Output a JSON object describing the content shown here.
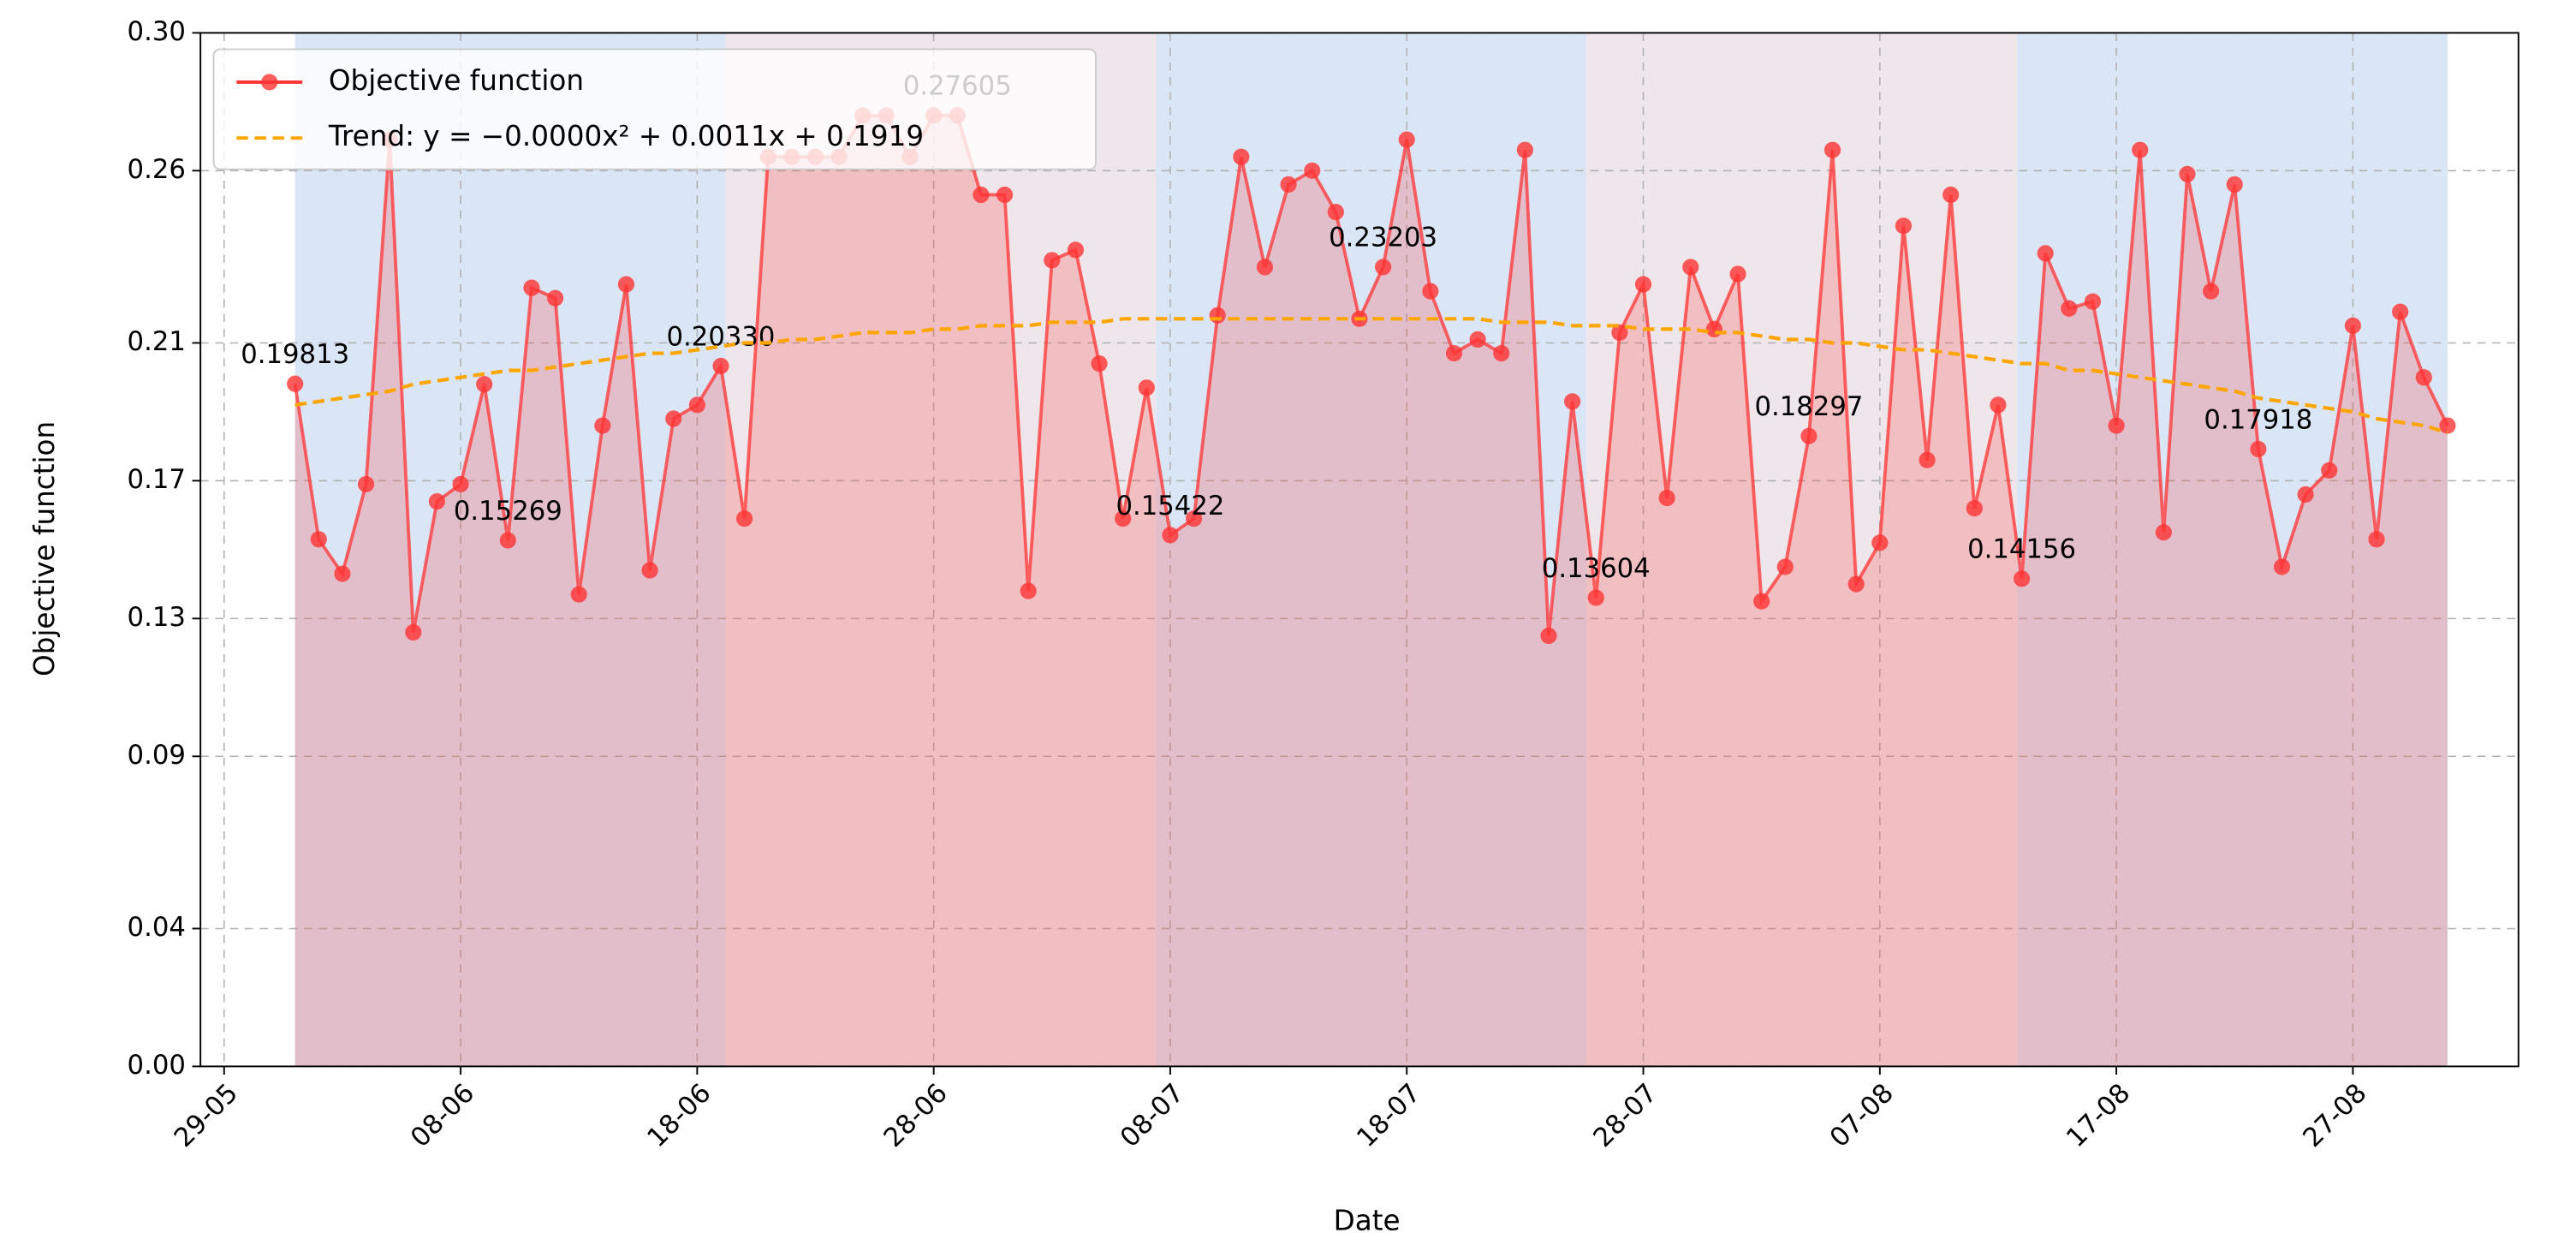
{
  "chart_data": {
    "type": "line",
    "xlabel": "Date",
    "ylabel": "Objective function",
    "ylabel_color": "#ff3333",
    "x": [
      "01-06",
      "02-06",
      "03-06",
      "04-06",
      "05-06",
      "06-06",
      "07-06",
      "08-06",
      "09-06",
      "10-06",
      "11-06",
      "12-06",
      "13-06",
      "14-06",
      "15-06",
      "16-06",
      "17-06",
      "18-06",
      "19-06",
      "20-06",
      "21-06",
      "22-06",
      "23-06",
      "24-06",
      "25-06",
      "26-06",
      "27-06",
      "28-06",
      "29-06",
      "30-06",
      "01-07",
      "02-07",
      "03-07",
      "04-07",
      "05-07",
      "06-07",
      "07-07",
      "08-07",
      "09-07",
      "10-07",
      "11-07",
      "12-07",
      "13-07",
      "14-07",
      "15-07",
      "16-07",
      "17-07",
      "18-07",
      "19-07",
      "20-07",
      "21-07",
      "22-07",
      "23-07",
      "24-07",
      "25-07",
      "26-07",
      "27-07",
      "28-07",
      "29-07",
      "30-07",
      "31-07",
      "01-08",
      "02-08",
      "03-08",
      "04-08",
      "05-08",
      "06-08",
      "07-08",
      "08-08",
      "09-08",
      "10-08",
      "11-08",
      "12-08",
      "13-08",
      "14-08",
      "15-08",
      "16-08",
      "17-08",
      "18-08",
      "19-08",
      "20-08",
      "21-08",
      "22-08",
      "23-08",
      "24-08",
      "25-08",
      "26-08",
      "27-08",
      "28-08",
      "29-08",
      "30-08",
      "31-08"
    ],
    "series": [
      {
        "name": "Objective function",
        "color": "#ff3333",
        "style": "solid",
        "markers": true,
        "values": [
          0.19813,
          0.153,
          0.143,
          0.169,
          0.269,
          0.126,
          0.164,
          0.169,
          0.198,
          0.15269,
          0.226,
          0.223,
          0.137,
          0.186,
          0.227,
          0.144,
          0.188,
          0.192,
          0.2033,
          0.159,
          0.264,
          0.264,
          0.264,
          0.264,
          0.276,
          0.276,
          0.264,
          0.276,
          0.27605,
          0.253,
          0.253,
          0.138,
          0.234,
          0.237,
          0.204,
          0.159,
          0.197,
          0.15422,
          0.159,
          0.218,
          0.264,
          0.232,
          0.256,
          0.26,
          0.248,
          0.217,
          0.23203,
          0.269,
          0.225,
          0.207,
          0.211,
          0.207,
          0.266,
          0.125,
          0.193,
          0.13604,
          0.213,
          0.227,
          0.165,
          0.232,
          0.214,
          0.23,
          0.135,
          0.145,
          0.18297,
          0.266,
          0.14,
          0.152,
          0.244,
          0.176,
          0.253,
          0.162,
          0.192,
          0.14156,
          0.236,
          0.22,
          0.222,
          0.186,
          0.266,
          0.155,
          0.259,
          0.225,
          0.256,
          0.17918,
          0.145,
          0.166,
          0.173,
          0.215,
          0.153,
          0.219,
          0.2,
          0.186
        ],
        "value_labels": [
          "0.19813",
          null,
          null,
          null,
          null,
          null,
          null,
          null,
          null,
          "0.15269",
          null,
          null,
          null,
          null,
          null,
          null,
          null,
          null,
          "0.20330",
          null,
          null,
          null,
          null,
          null,
          null,
          null,
          null,
          null,
          "0.27605",
          null,
          null,
          null,
          null,
          null,
          null,
          null,
          null,
          "0.15422",
          null,
          null,
          null,
          null,
          null,
          null,
          null,
          null,
          "0.23203",
          null,
          null,
          null,
          null,
          null,
          null,
          null,
          null,
          "0.13604",
          null,
          null,
          null,
          null,
          null,
          null,
          null,
          null,
          "0.18297",
          null,
          null,
          null,
          null,
          null,
          null,
          null,
          null,
          "0.14156",
          null,
          null,
          null,
          null,
          null,
          null,
          null,
          null,
          null,
          "0.17918",
          null,
          null,
          null,
          null,
          null,
          null,
          null,
          null
        ]
      },
      {
        "name": "Trend: y = −0.0000x² + 0.0011x + 0.1919",
        "color": "#ffa500",
        "style": "dashed",
        "markers": false,
        "values": [
          0.192,
          0.193,
          0.194,
          0.195,
          0.196,
          0.198,
          0.199,
          0.2,
          0.201,
          0.202,
          0.202,
          0.203,
          0.204,
          0.205,
          0.206,
          0.207,
          0.207,
          0.208,
          0.209,
          0.21,
          0.21,
          0.211,
          0.211,
          0.212,
          0.213,
          0.213,
          0.213,
          0.214,
          0.214,
          0.215,
          0.215,
          0.215,
          0.216,
          0.216,
          0.216,
          0.217,
          0.217,
          0.217,
          0.217,
          0.217,
          0.217,
          0.217,
          0.217,
          0.217,
          0.217,
          0.217,
          0.217,
          0.217,
          0.217,
          0.217,
          0.217,
          0.216,
          0.216,
          0.216,
          0.215,
          0.215,
          0.215,
          0.214,
          0.214,
          0.214,
          0.213,
          0.213,
          0.212,
          0.211,
          0.211,
          0.21,
          0.21,
          0.209,
          0.208,
          0.208,
          0.207,
          0.206,
          0.205,
          0.204,
          0.204,
          0.202,
          0.202,
          0.201,
          0.2,
          0.199,
          0.198,
          0.197,
          0.196,
          0.194,
          0.193,
          0.192,
          0.191,
          0.19,
          0.188,
          0.187,
          0.186,
          0.184
        ]
      }
    ],
    "fill_under": true,
    "band_colors": [
      "#dae6f6",
      "#eee6ea"
    ],
    "xlim": [
      "28-05",
      "03-09"
    ],
    "xticks": [
      "29-05",
      "08-06",
      "18-06",
      "28-06",
      "08-07",
      "18-07",
      "28-07",
      "07-08",
      "17-08",
      "27-08"
    ],
    "ylim": [
      0,
      0.3
    ],
    "yticks": [
      {
        "value": 0,
        "label": "0.00"
      },
      0.04,
      0.09,
      0.13,
      0.17,
      0.21,
      0.26,
      {
        "value": 0.3,
        "label": "0.30"
      }
    ],
    "grid": true,
    "legend": "upper left"
  }
}
